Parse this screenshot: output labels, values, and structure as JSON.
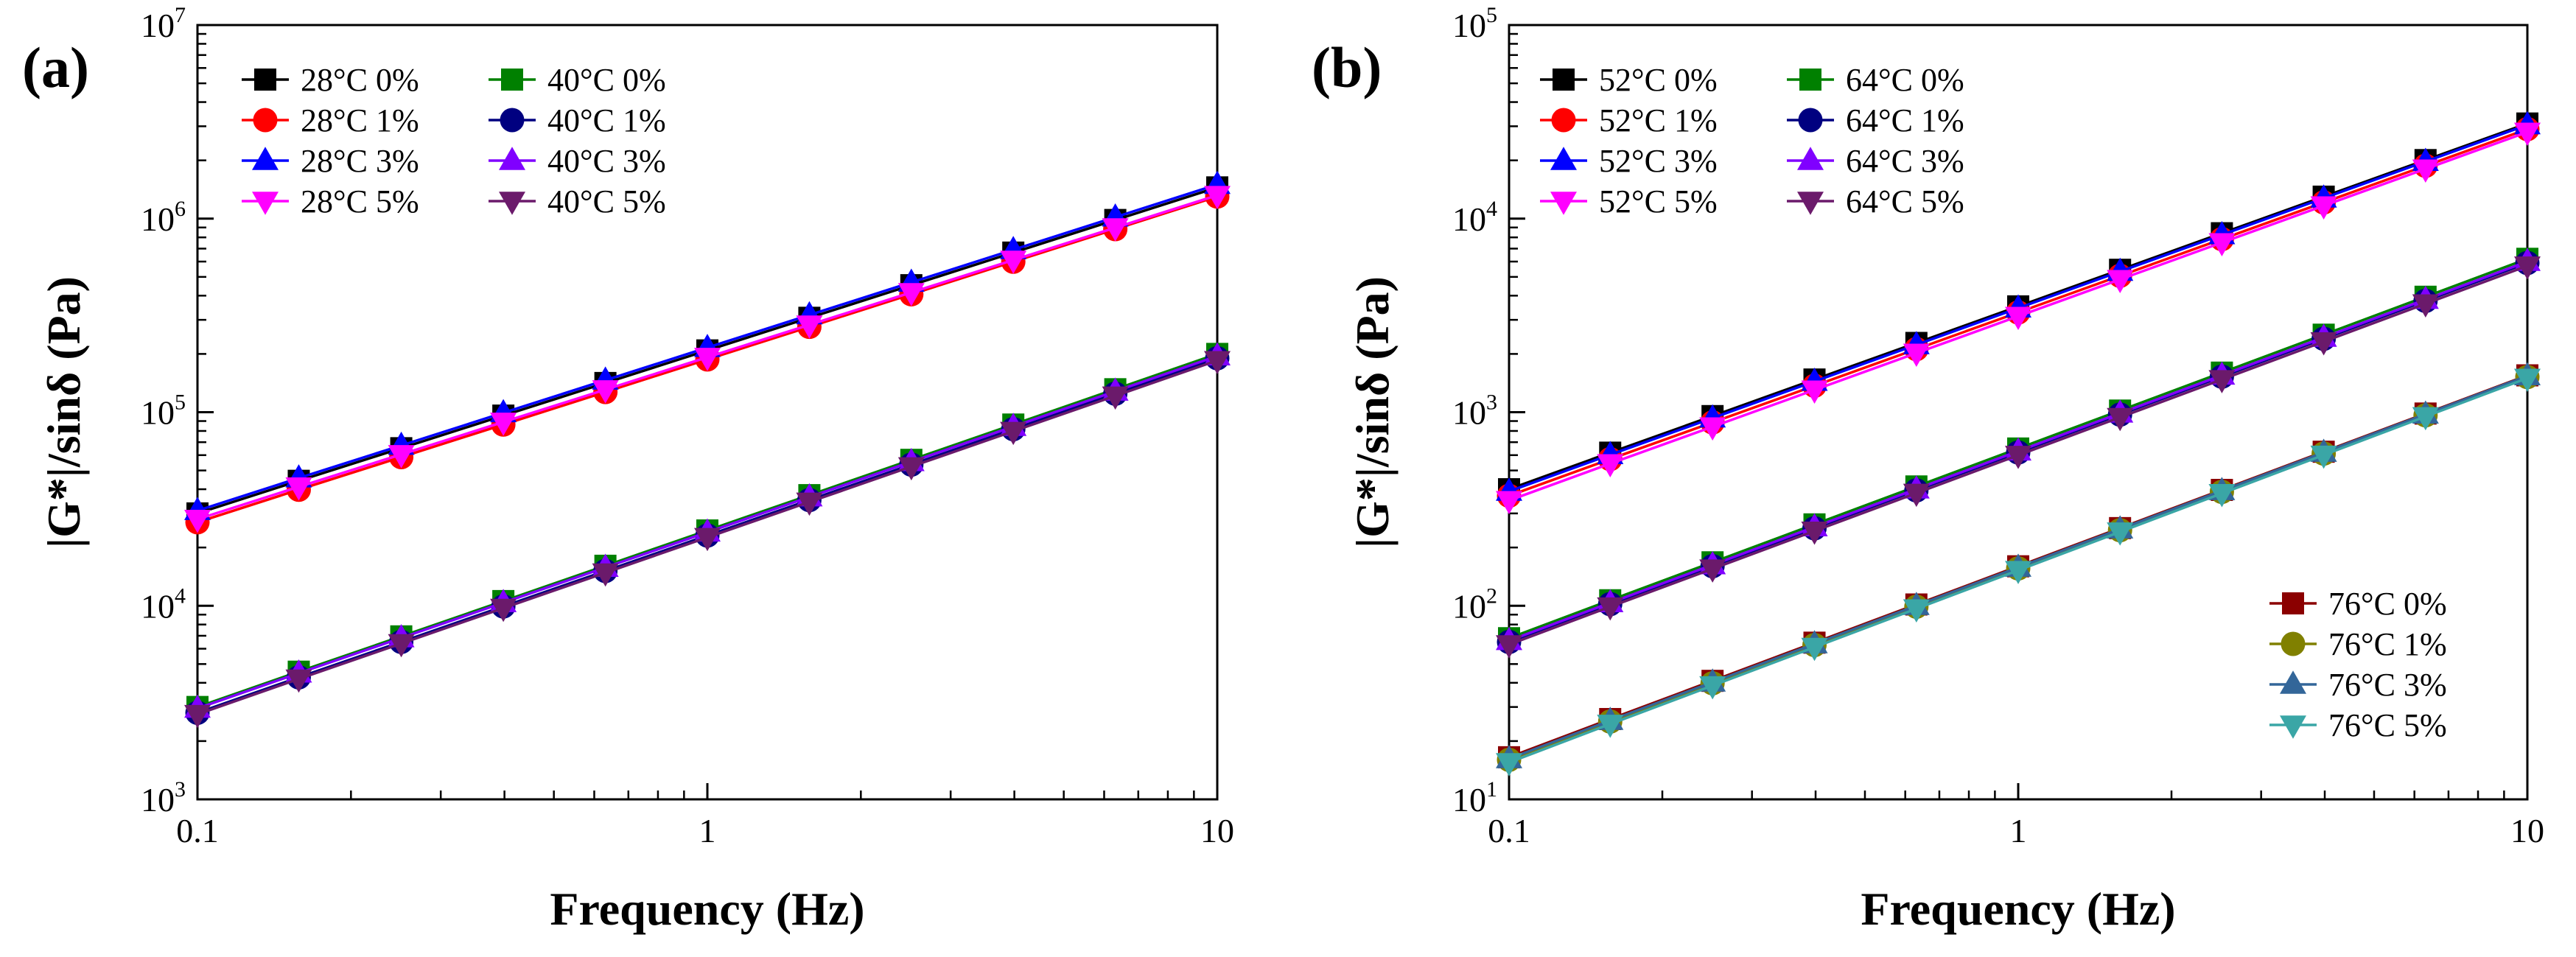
{
  "chart_data": [
    {
      "type": "line",
      "panel_label": "(a)",
      "xlabel": "Frequency (Hz)",
      "ylabel": "|G*|/sinδ (Pa)",
      "xscale": "log",
      "yscale": "log",
      "xlim": [
        0.1,
        10
      ],
      "ylim": [
        1000,
        10000000
      ],
      "x_ticks": [
        {
          "value": 0.1,
          "label": "0.1"
        },
        {
          "value": 1,
          "label": "1"
        },
        {
          "value": 10,
          "label": "10"
        }
      ],
      "y_ticks": [
        {
          "value": 1000,
          "base": "10",
          "exp": "3"
        },
        {
          "value": 10000,
          "base": "10",
          "exp": "4"
        },
        {
          "value": 100000,
          "base": "10",
          "exp": "5"
        },
        {
          "value": 1000000,
          "base": "10",
          "exp": "6"
        },
        {
          "value": 10000000,
          "base": "10",
          "exp": "7"
        }
      ],
      "legend_position": "top-left",
      "legends": [
        {
          "position": "top-left",
          "columns": 2,
          "entries": [
            "28°C 0%",
            "28°C 1%",
            "28°C 3%",
            "28°C 5%",
            "40°C 0%",
            "40°C 1%",
            "40°C 3%",
            "40°C 5%"
          ]
        }
      ],
      "x": [
        0.1,
        0.158,
        0.251,
        0.398,
        0.631,
        1.0,
        1.585,
        2.512,
        3.981,
        6.31,
        10.0
      ],
      "series": [
        {
          "name": "28°C 0%",
          "color": "#000000",
          "marker": "square",
          "start": 30000,
          "end": 1450000
        },
        {
          "name": "28°C 1%",
          "color": "#ff0000",
          "marker": "circle",
          "start": 27000,
          "end": 1300000
        },
        {
          "name": "28°C 3%",
          "color": "#0000ff",
          "marker": "triangle-up",
          "start": 31000,
          "end": 1500000
        },
        {
          "name": "28°C 5%",
          "color": "#ff00ff",
          "marker": "triangle-down",
          "start": 28000,
          "end": 1320000
        },
        {
          "name": "40°C 0%",
          "color": "#008000",
          "marker": "square",
          "start": 3000,
          "end": 200000
        },
        {
          "name": "40°C 1%",
          "color": "#000080",
          "marker": "circle",
          "start": 2800,
          "end": 190000
        },
        {
          "name": "40°C 3%",
          "color": "#8000ff",
          "marker": "triangle-up",
          "start": 2950,
          "end": 195000
        },
        {
          "name": "40°C 5%",
          "color": "#6b1a6b",
          "marker": "triangle-down",
          "start": 2750,
          "end": 185000
        }
      ]
    },
    {
      "type": "line",
      "panel_label": "(b)",
      "xlabel": "Frequency (Hz)",
      "ylabel": "|G*|/sinδ (Pa)",
      "xscale": "log",
      "yscale": "log",
      "xlim": [
        0.1,
        10
      ],
      "ylim": [
        10,
        100000
      ],
      "x_ticks": [
        {
          "value": 0.1,
          "label": "0.1"
        },
        {
          "value": 1,
          "label": "1"
        },
        {
          "value": 10,
          "label": "10"
        }
      ],
      "y_ticks": [
        {
          "value": 10,
          "base": "10",
          "exp": "1"
        },
        {
          "value": 100,
          "base": "10",
          "exp": "2"
        },
        {
          "value": 1000,
          "base": "10",
          "exp": "3"
        },
        {
          "value": 10000,
          "base": "10",
          "exp": "4"
        },
        {
          "value": 100000,
          "base": "10",
          "exp": "5"
        }
      ],
      "legend_position": "top-left",
      "legends": [
        {
          "position": "top-left",
          "columns": 2,
          "entries": [
            "52°C 0%",
            "52°C 1%",
            "52°C 3%",
            "52°C 5%",
            "64°C 0%",
            "64°C 1%",
            "64°C 3%",
            "64°C 5%"
          ]
        },
        {
          "position": "bottom-right",
          "columns": 1,
          "entries": [
            "76°C 0%",
            "76°C 1%",
            "76°C 3%",
            "76°C 5%"
          ]
        }
      ],
      "x": [
        0.1,
        0.158,
        0.251,
        0.398,
        0.631,
        1.0,
        1.585,
        2.512,
        3.981,
        6.31,
        10.0
      ],
      "series": [
        {
          "name": "52°C 0%",
          "color": "#000000",
          "marker": "square",
          "start": 400,
          "end": 31000
        },
        {
          "name": "52°C 1%",
          "color": "#ff0000",
          "marker": "circle",
          "start": 370,
          "end": 29000
        },
        {
          "name": "52°C 3%",
          "color": "#0000ff",
          "marker": "triangle-up",
          "start": 390,
          "end": 30500
        },
        {
          "name": "52°C 5%",
          "color": "#ff00ff",
          "marker": "triangle-down",
          "start": 350,
          "end": 28000
        },
        {
          "name": "64°C 0%",
          "color": "#008000",
          "marker": "square",
          "start": 68,
          "end": 6200
        },
        {
          "name": "64°C 1%",
          "color": "#000080",
          "marker": "circle",
          "start": 65,
          "end": 5900
        },
        {
          "name": "64°C 3%",
          "color": "#8000ff",
          "marker": "triangle-up",
          "start": 66,
          "end": 6000
        },
        {
          "name": "64°C 5%",
          "color": "#6b1a6b",
          "marker": "triangle-down",
          "start": 63,
          "end": 5700
        },
        {
          "name": "76°C 0%",
          "color": "#8b0000",
          "marker": "square",
          "start": 16.5,
          "end": 1550
        },
        {
          "name": "76°C 1%",
          "color": "#808000",
          "marker": "circle",
          "start": 16,
          "end": 1520
        },
        {
          "name": "76°C 3%",
          "color": "#336699",
          "marker": "triangle-up",
          "start": 16.2,
          "end": 1540
        },
        {
          "name": "76°C 5%",
          "color": "#3aa6a6",
          "marker": "triangle-down",
          "start": 15.5,
          "end": 1500
        }
      ]
    }
  ]
}
